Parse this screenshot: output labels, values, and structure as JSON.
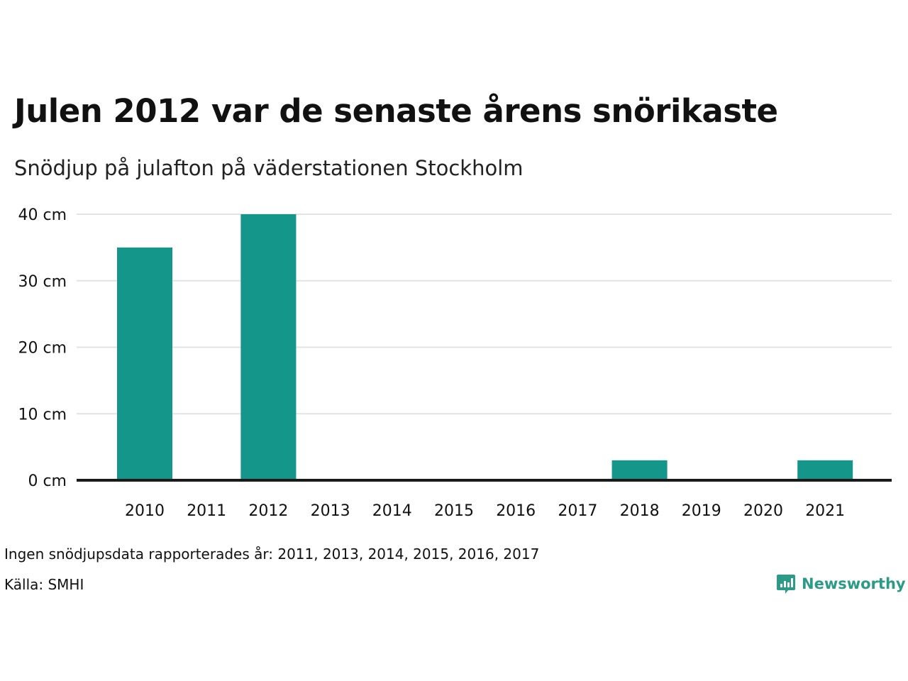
{
  "chart_data": {
    "type": "bar",
    "title": "Julen 2012 var de senaste årens snörikaste",
    "subtitle": "Snödjup på julafton på väderstationen Stockholm",
    "categories": [
      "2010",
      "2011",
      "2012",
      "2013",
      "2014",
      "2015",
      "2016",
      "2017",
      "2018",
      "2019",
      "2020",
      "2021"
    ],
    "series": [
      {
        "values": [
          35,
          null,
          40,
          null,
          null,
          null,
          null,
          null,
          3,
          0,
          0,
          3
        ]
      }
    ],
    "ylim": [
      0,
      40
    ],
    "yticks": [
      0,
      10,
      20,
      30,
      40
    ],
    "ytick_suffix": " cm",
    "grid": true,
    "bar_color": "#14968a"
  },
  "footer": {
    "note": "Ingen snödjupsdata rapporterades år: 2011, 2013, 2014, 2015, 2016, 2017",
    "source": "Källa: SMHI"
  },
  "brand": {
    "name": "Newsworthy",
    "icon": "bar-chart-bubble-icon",
    "color": "#2b9a86"
  }
}
